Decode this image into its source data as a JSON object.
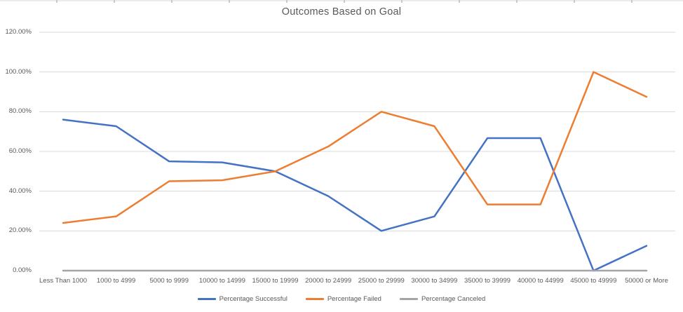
{
  "chart_data": {
    "type": "line",
    "title": "Outcomes Based on Goal",
    "categories": [
      "Less Than 1000",
      "1000 to 4999",
      "5000 to 9999",
      "10000 to 14999",
      "15000 to 19999",
      "20000 to 24999",
      "25000 to 29999",
      "30000 to 34999",
      "35000 to 39999",
      "40000 to 44999",
      "45000 to 49999",
      "50000 or More"
    ],
    "series": [
      {
        "name": "Percentage Successful",
        "color": "#4472C4",
        "values": [
          76,
          72.7,
          55,
          54.5,
          50,
          37.5,
          20,
          27.3,
          66.7,
          66.7,
          0,
          12.5
        ]
      },
      {
        "name": "Percentage Failed",
        "color": "#ED7D31",
        "values": [
          24,
          27.3,
          45,
          45.5,
          50,
          62.5,
          80,
          72.7,
          33.3,
          33.3,
          100,
          87.5
        ]
      },
      {
        "name": "Percentage Canceled",
        "color": "#A5A5A5",
        "values": [
          0,
          0,
          0,
          0,
          0,
          0,
          0,
          0,
          0,
          0,
          0,
          0
        ]
      }
    ],
    "y_axis": {
      "min": 0,
      "max": 120,
      "step": 20,
      "tick_labels": [
        "0.00%",
        "20.00%",
        "40.00%",
        "60.00%",
        "80.00%",
        "100.00%",
        "120.00%"
      ]
    },
    "xlabel": "",
    "ylabel": "",
    "ylim": [
      0,
      120
    ],
    "grid": true,
    "legend_position": "bottom"
  },
  "colors": {
    "gridline": "#D9D9D9",
    "axis_text": "#595959",
    "title_text": "#595959",
    "background": "#FFFFFF"
  }
}
